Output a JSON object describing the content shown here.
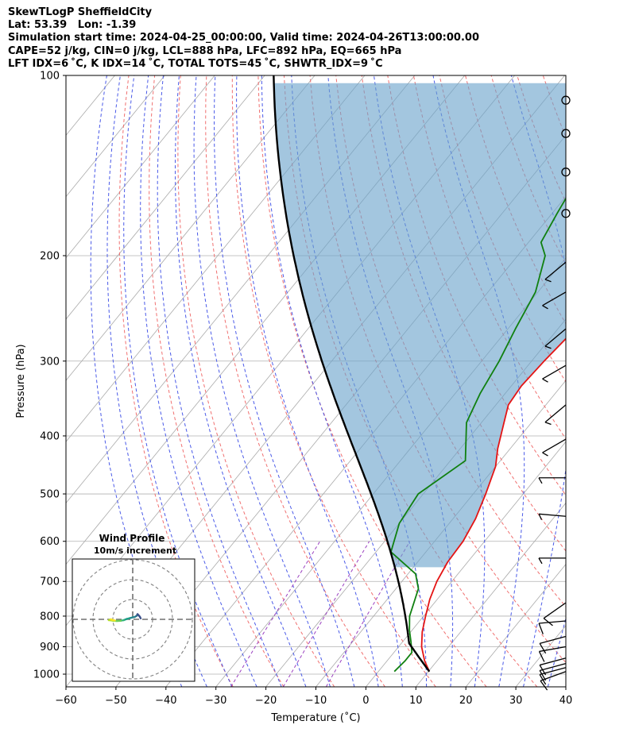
{
  "header": {
    "line1": "SkewTLogP SheffieldCity",
    "line2": "Lat: 53.39   Lon: -1.39",
    "line3": "Simulation start time: 2024-04-25_00:00:00, Valid time: 2024-04-26T13:00:00.00",
    "line4": "CAPE=52 j/kg, CIN=0 j/kg, LCL=888 hPa, LFC=892 hPa, EQ=665 hPa",
    "line5": "LFT IDX=6 ˚C, K IDX=14 ˚C, TOTAL TOTS=45 ˚C, SHWTR_IDX=9 ˚C"
  },
  "chart_data": {
    "type": "skew-t log-p",
    "xlabel": "Temperature (˚C)",
    "ylabel": "Pressure (hPa)",
    "xlim": [
      -60,
      40
    ],
    "ylim": [
      1050,
      100
    ],
    "x_ticks": [
      -60,
      -50,
      -40,
      -30,
      -20,
      -10,
      0,
      10,
      20,
      30,
      40
    ],
    "y_ticks": [
      100,
      200,
      300,
      400,
      500,
      600,
      700,
      800,
      900,
      1000
    ],
    "grid": true,
    "colors": {
      "temperature": "#e41414",
      "dewpoint": "#108010",
      "parcel": "#000000",
      "cape_fill": "#6aa3cc",
      "dry_adiabats": "#f07070",
      "moist_adiabats": "#4a5ae8",
      "mixing_ratio": "#9a40c0",
      "isotherms": "#aaaaaa"
    },
    "series": [
      {
        "role": "temperature",
        "points": [
          [
            10.2,
            990
          ],
          [
            7.5,
            950
          ],
          [
            4.6,
            900
          ],
          [
            2.3,
            850
          ],
          [
            0.4,
            800
          ],
          [
            -1.5,
            750
          ],
          [
            -3.0,
            700
          ],
          [
            -4.0,
            650
          ],
          [
            -4.3,
            600
          ],
          [
            -5.5,
            550
          ],
          [
            -7.5,
            500
          ],
          [
            -10.0,
            450
          ],
          [
            -12.5,
            420
          ],
          [
            -15.5,
            380
          ],
          [
            -17.5,
            355
          ],
          [
            -18.0,
            330
          ],
          [
            -17.5,
            300
          ],
          [
            -16.8,
            275
          ],
          [
            -15.8,
            260
          ],
          [
            -14.0,
            245
          ],
          [
            -11.5,
            230
          ],
          [
            -8.5,
            215
          ],
          [
            -5.5,
            195
          ],
          [
            -4.5,
            175
          ],
          [
            -5.3,
            160
          ],
          [
            -4.5,
            150
          ],
          [
            -4.0,
            135
          ],
          [
            -2.5,
            120
          ],
          [
            0.0,
            100
          ]
        ]
      },
      {
        "role": "dewpoint",
        "points": [
          [
            3.2,
            990
          ],
          [
            3.6,
            950
          ],
          [
            3.6,
            920
          ],
          [
            1.5,
            880
          ],
          [
            -0.5,
            845
          ],
          [
            -2.8,
            800
          ],
          [
            -5.5,
            720
          ],
          [
            -8.5,
            680
          ],
          [
            -17.0,
            625
          ],
          [
            -20.0,
            560
          ],
          [
            -21.0,
            500
          ],
          [
            -17.0,
            440
          ],
          [
            -23.0,
            380
          ],
          [
            -25.0,
            340
          ],
          [
            -26.5,
            300
          ],
          [
            -28.5,
            265
          ],
          [
            -30.5,
            230
          ],
          [
            -34.5,
            200
          ],
          [
            -37.5,
            190
          ],
          [
            -39.0,
            170
          ],
          [
            -40.5,
            150
          ],
          [
            -42.5,
            125
          ],
          [
            -45.0,
            100
          ]
        ]
      }
    ],
    "parcel_path": {
      "start": [
        10.2,
        990
      ],
      "lcl_hpa": 888,
      "surface_dewpoint": 3.2
    },
    "cape_shading": {
      "between": "temperature and parcel",
      "p_range": [
        665,
        100
      ]
    },
    "wind_barbs": [
      {
        "p": 990,
        "speed_kt": 10,
        "dir_deg": 250
      },
      {
        "p": 975,
        "speed_kt": 10,
        "dir_deg": 255
      },
      {
        "p": 960,
        "speed_kt": 10,
        "dir_deg": 255
      },
      {
        "p": 940,
        "speed_kt": 10,
        "dir_deg": 255
      },
      {
        "p": 900,
        "speed_kt": 10,
        "dir_deg": 260
      },
      {
        "p": 865,
        "speed_kt": 10,
        "dir_deg": 255
      },
      {
        "p": 815,
        "speed_kt": 10,
        "dir_deg": 265
      },
      {
        "p": 760,
        "speed_kt": 10,
        "dir_deg": 235
      },
      {
        "p": 640,
        "speed_kt": 5,
        "dir_deg": 270
      },
      {
        "p": 545,
        "speed_kt": 5,
        "dir_deg": 275
      },
      {
        "p": 470,
        "speed_kt": 5,
        "dir_deg": 270
      },
      {
        "p": 405,
        "speed_kt": 5,
        "dir_deg": 240
      },
      {
        "p": 355,
        "speed_kt": 5,
        "dir_deg": 230
      },
      {
        "p": 305,
        "speed_kt": 5,
        "dir_deg": 240
      },
      {
        "p": 265,
        "speed_kt": 5,
        "dir_deg": 230
      },
      {
        "p": 230,
        "speed_kt": 5,
        "dir_deg": 240
      },
      {
        "p": 205,
        "speed_kt": 5,
        "dir_deg": 230
      },
      {
        "p": 170,
        "speed_kt": 0,
        "dir_deg": 0
      },
      {
        "p": 145,
        "speed_kt": 0,
        "dir_deg": 0
      },
      {
        "p": 125,
        "speed_kt": 0,
        "dir_deg": 0
      },
      {
        "p": 110,
        "speed_kt": 0,
        "dir_deg": 0
      }
    ],
    "hodograph": {
      "title": "Wind Profile",
      "subtitle": "10m/s increment",
      "ring_step_ms": 10,
      "rings": 3,
      "trace_uv": [
        [
          4.0,
          0.5
        ],
        [
          3.6,
          1.3
        ],
        [
          3.0,
          2.0
        ],
        [
          2.4,
          2.6
        ],
        [
          2.0,
          1.8
        ],
        [
          1.0,
          1.2
        ],
        [
          0.0,
          1.0
        ],
        [
          -1.5,
          0.6
        ],
        [
          -3.0,
          0.2
        ],
        [
          -4.5,
          -0.4
        ],
        [
          -6.0,
          -0.7
        ],
        [
          -8.0,
          -0.8
        ],
        [
          -10.0,
          -0.7
        ],
        [
          -12.0,
          -0.4
        ],
        [
          -11.0,
          0.0
        ],
        [
          -9.0,
          -0.6
        ]
      ]
    }
  }
}
